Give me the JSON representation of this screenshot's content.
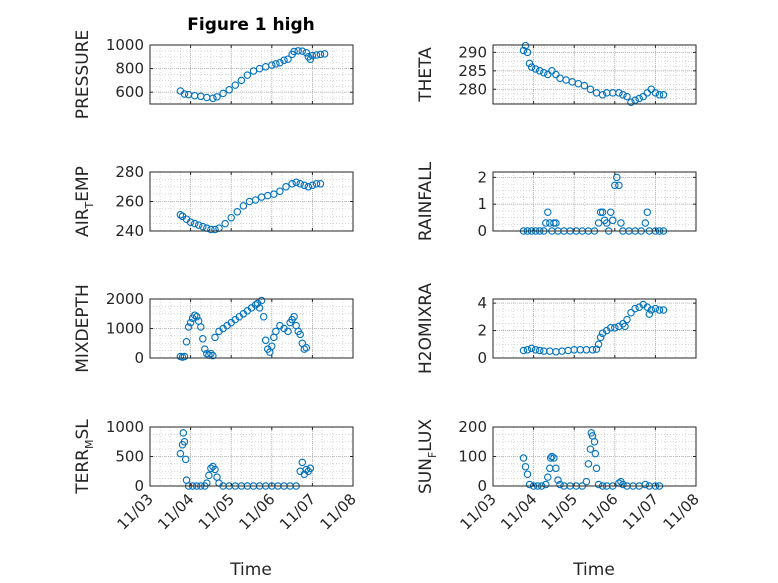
{
  "figure": {
    "title": "Figure 1 high",
    "marker_color": "#0072BD",
    "grid": "dotted minor + major",
    "x_ticks": [
      "11/03",
      "11/04",
      "11/05",
      "11/06",
      "11/07",
      "11/08"
    ],
    "xlabel": "Time"
  },
  "chart_data": [
    {
      "type": "scatter",
      "panel": "PRESSURE",
      "ylabel": "PRESSURE",
      "ylim": [
        500,
        1000
      ],
      "yticks": [
        600,
        800,
        1000
      ],
      "xlim_days": [
        3,
        8
      ],
      "points": [
        [
          3.75,
          610
        ],
        [
          3.85,
          585
        ],
        [
          3.95,
          580
        ],
        [
          4.1,
          570
        ],
        [
          4.25,
          565
        ],
        [
          4.4,
          555
        ],
        [
          4.55,
          548
        ],
        [
          4.65,
          560
        ],
        [
          4.8,
          590
        ],
        [
          4.95,
          620
        ],
        [
          5.1,
          660
        ],
        [
          5.25,
          700
        ],
        [
          5.4,
          745
        ],
        [
          5.55,
          780
        ],
        [
          5.7,
          800
        ],
        [
          5.85,
          815
        ],
        [
          6.0,
          830
        ],
        [
          6.1,
          840
        ],
        [
          6.2,
          850
        ],
        [
          6.3,
          870
        ],
        [
          6.4,
          880
        ],
        [
          6.5,
          920
        ],
        [
          6.55,
          945
        ],
        [
          6.65,
          950
        ],
        [
          6.75,
          948
        ],
        [
          6.85,
          935
        ],
        [
          6.9,
          900
        ],
        [
          6.95,
          880
        ],
        [
          7.0,
          910
        ],
        [
          7.1,
          915
        ],
        [
          7.2,
          920
        ],
        [
          7.3,
          925
        ]
      ]
    },
    {
      "type": "scatter",
      "panel": "THETA",
      "ylabel": "THETA",
      "ylim": [
        276,
        292
      ],
      "yticks": [
        280,
        285,
        290
      ],
      "xlim_days": [
        3,
        8
      ],
      "points": [
        [
          3.75,
          290.5
        ],
        [
          3.8,
          291.8
        ],
        [
          3.85,
          290
        ],
        [
          3.9,
          287
        ],
        [
          3.95,
          286
        ],
        [
          4.05,
          285.5
        ],
        [
          4.15,
          285
        ],
        [
          4.25,
          284.5
        ],
        [
          4.35,
          284
        ],
        [
          4.45,
          285
        ],
        [
          4.55,
          284
        ],
        [
          4.65,
          283
        ],
        [
          4.8,
          282.5
        ],
        [
          4.95,
          282
        ],
        [
          5.1,
          281.5
        ],
        [
          5.25,
          281
        ],
        [
          5.4,
          280
        ],
        [
          5.55,
          279
        ],
        [
          5.7,
          278.5
        ],
        [
          5.8,
          279
        ],
        [
          5.95,
          279
        ],
        [
          6.1,
          279
        ],
        [
          6.2,
          278.5
        ],
        [
          6.3,
          278
        ],
        [
          6.4,
          276.5
        ],
        [
          6.5,
          277
        ],
        [
          6.6,
          277.5
        ],
        [
          6.7,
          278
        ],
        [
          6.8,
          279
        ],
        [
          6.9,
          280
        ],
        [
          7.0,
          279
        ],
        [
          7.1,
          278.5
        ],
        [
          7.2,
          278.5
        ]
      ]
    },
    {
      "type": "scatter",
      "panel": "AIR_TEMP",
      "ylabel": "AIR",
      "ylabel_sub": "T",
      "ylabel_end": "EMP",
      "ylim": [
        240,
        280
      ],
      "yticks": [
        240,
        260,
        280
      ],
      "xlim_days": [
        3,
        8
      ],
      "points": [
        [
          3.75,
          251
        ],
        [
          3.8,
          250
        ],
        [
          3.9,
          248
        ],
        [
          4.0,
          246
        ],
        [
          4.1,
          245
        ],
        [
          4.2,
          244
        ],
        [
          4.3,
          243
        ],
        [
          4.4,
          242
        ],
        [
          4.5,
          241
        ],
        [
          4.6,
          241
        ],
        [
          4.7,
          242
        ],
        [
          4.85,
          245
        ],
        [
          5.0,
          249
        ],
        [
          5.15,
          253
        ],
        [
          5.3,
          257
        ],
        [
          5.45,
          260
        ],
        [
          5.6,
          261
        ],
        [
          5.75,
          263
        ],
        [
          5.9,
          264
        ],
        [
          6.05,
          265
        ],
        [
          6.2,
          267
        ],
        [
          6.35,
          270
        ],
        [
          6.5,
          272
        ],
        [
          6.6,
          273
        ],
        [
          6.7,
          272
        ],
        [
          6.8,
          271
        ],
        [
          6.9,
          270
        ],
        [
          7.0,
          271
        ],
        [
          7.1,
          272
        ],
        [
          7.2,
          272
        ]
      ]
    },
    {
      "type": "scatter",
      "panel": "RAINFALL",
      "ylabel": "RAINFALL",
      "ylim": [
        0,
        2.2
      ],
      "yticks": [
        0,
        1,
        2
      ],
      "xlim_days": [
        3,
        8
      ],
      "points": [
        [
          3.75,
          0
        ],
        [
          3.85,
          0
        ],
        [
          3.95,
          0
        ],
        [
          4.05,
          0
        ],
        [
          4.15,
          0
        ],
        [
          4.25,
          0
        ],
        [
          4.3,
          0.3
        ],
        [
          4.35,
          0.7
        ],
        [
          4.4,
          0.3
        ],
        [
          4.45,
          0
        ],
        [
          4.5,
          0.3
        ],
        [
          4.55,
          0.3
        ],
        [
          4.6,
          0
        ],
        [
          4.75,
          0
        ],
        [
          4.9,
          0
        ],
        [
          5.05,
          0
        ],
        [
          5.2,
          0
        ],
        [
          5.35,
          0
        ],
        [
          5.5,
          0
        ],
        [
          5.6,
          0.3
        ],
        [
          5.65,
          0.7
        ],
        [
          5.7,
          0.7
        ],
        [
          5.75,
          0.4
        ],
        [
          5.8,
          0.3
        ],
        [
          5.85,
          0
        ],
        [
          5.9,
          0.7
        ],
        [
          5.95,
          0.4
        ],
        [
          6.0,
          1.7
        ],
        [
          6.05,
          2.0
        ],
        [
          6.1,
          1.7
        ],
        [
          6.15,
          0.3
        ],
        [
          6.2,
          0
        ],
        [
          6.35,
          0
        ],
        [
          6.5,
          0
        ],
        [
          6.65,
          0
        ],
        [
          6.75,
          0.3
        ],
        [
          6.8,
          0.7
        ],
        [
          6.85,
          0
        ],
        [
          7.0,
          0
        ],
        [
          7.1,
          0
        ],
        [
          7.2,
          0
        ]
      ]
    },
    {
      "type": "scatter",
      "panel": "MIXDEPTH",
      "ylabel": "MIXDEPTH",
      "ylim": [
        0,
        2000
      ],
      "yticks": [
        0,
        1000,
        2000
      ],
      "xlim_days": [
        3,
        8
      ],
      "points": [
        [
          3.75,
          50
        ],
        [
          3.8,
          30
        ],
        [
          3.85,
          50
        ],
        [
          3.9,
          550
        ],
        [
          3.95,
          1050
        ],
        [
          4.0,
          1200
        ],
        [
          4.05,
          1350
        ],
        [
          4.1,
          1450
        ],
        [
          4.15,
          1400
        ],
        [
          4.2,
          1250
        ],
        [
          4.25,
          1050
        ],
        [
          4.3,
          650
        ],
        [
          4.35,
          300
        ],
        [
          4.4,
          150
        ],
        [
          4.45,
          100
        ],
        [
          4.5,
          150
        ],
        [
          4.55,
          80
        ],
        [
          4.6,
          700
        ],
        [
          4.7,
          900
        ],
        [
          4.8,
          1000
        ],
        [
          4.9,
          1100
        ],
        [
          5.0,
          1200
        ],
        [
          5.1,
          1300
        ],
        [
          5.2,
          1400
        ],
        [
          5.3,
          1500
        ],
        [
          5.4,
          1600
        ],
        [
          5.5,
          1700
        ],
        [
          5.6,
          1800
        ],
        [
          5.65,
          1850
        ],
        [
          5.7,
          1700
        ],
        [
          5.75,
          1950
        ],
        [
          5.8,
          1400
        ],
        [
          5.85,
          600
        ],
        [
          5.9,
          300
        ],
        [
          5.95,
          200
        ],
        [
          6.0,
          400
        ],
        [
          6.05,
          700
        ],
        [
          6.1,
          900
        ],
        [
          6.2,
          1100
        ],
        [
          6.3,
          1000
        ],
        [
          6.4,
          900
        ],
        [
          6.45,
          1200
        ],
        [
          6.5,
          1300
        ],
        [
          6.55,
          1400
        ],
        [
          6.6,
          1100
        ],
        [
          6.65,
          900
        ],
        [
          6.7,
          800
        ],
        [
          6.75,
          500
        ],
        [
          6.8,
          300
        ],
        [
          6.85,
          350
        ]
      ]
    },
    {
      "type": "scatter",
      "panel": "H2OMIXRA",
      "ylabel": "H2OMIXRA",
      "ylim": [
        0,
        4.3
      ],
      "yticks": [
        0,
        2,
        4
      ],
      "xlim_days": [
        3,
        8
      ],
      "points": [
        [
          3.75,
          0.55
        ],
        [
          3.85,
          0.6
        ],
        [
          3.95,
          0.7
        ],
        [
          4.05,
          0.6
        ],
        [
          4.15,
          0.55
        ],
        [
          4.25,
          0.5
        ],
        [
          4.4,
          0.5
        ],
        [
          4.55,
          0.45
        ],
        [
          4.7,
          0.5
        ],
        [
          4.85,
          0.55
        ],
        [
          5.0,
          0.6
        ],
        [
          5.15,
          0.6
        ],
        [
          5.3,
          0.6
        ],
        [
          5.45,
          0.6
        ],
        [
          5.55,
          0.65
        ],
        [
          5.6,
          1.0
        ],
        [
          5.65,
          1.5
        ],
        [
          5.7,
          1.8
        ],
        [
          5.8,
          2.0
        ],
        [
          5.9,
          2.2
        ],
        [
          6.0,
          2.2
        ],
        [
          6.1,
          2.3
        ],
        [
          6.2,
          2.5
        ],
        [
          6.25,
          2.3
        ],
        [
          6.3,
          2.8
        ],
        [
          6.4,
          3.3
        ],
        [
          6.5,
          3.6
        ],
        [
          6.6,
          3.7
        ],
        [
          6.7,
          3.9
        ],
        [
          6.8,
          3.7
        ],
        [
          6.85,
          3.2
        ],
        [
          6.9,
          3.5
        ],
        [
          7.0,
          3.6
        ],
        [
          7.1,
          3.5
        ],
        [
          7.2,
          3.5
        ]
      ]
    },
    {
      "type": "scatter",
      "panel": "TERR_MSL",
      "ylabel": "TERR",
      "ylabel_sub": "M",
      "ylabel_end": "SL",
      "ylim": [
        0,
        1000
      ],
      "yticks": [
        0,
        500,
        1000
      ],
      "xlim_days": [
        3,
        8
      ],
      "points": [
        [
          3.75,
          550
        ],
        [
          3.8,
          700
        ],
        [
          3.82,
          900
        ],
        [
          3.85,
          750
        ],
        [
          3.88,
          450
        ],
        [
          3.9,
          100
        ],
        [
          3.95,
          0
        ],
        [
          4.05,
          0
        ],
        [
          4.15,
          0
        ],
        [
          4.25,
          0
        ],
        [
          4.35,
          0
        ],
        [
          4.4,
          50
        ],
        [
          4.45,
          180
        ],
        [
          4.5,
          300
        ],
        [
          4.55,
          330
        ],
        [
          4.6,
          280
        ],
        [
          4.65,
          150
        ],
        [
          4.7,
          50
        ],
        [
          4.8,
          0
        ],
        [
          4.95,
          0
        ],
        [
          5.1,
          0
        ],
        [
          5.25,
          0
        ],
        [
          5.4,
          0
        ],
        [
          5.55,
          0
        ],
        [
          5.7,
          0
        ],
        [
          5.85,
          0
        ],
        [
          6.0,
          0
        ],
        [
          6.15,
          0
        ],
        [
          6.3,
          0
        ],
        [
          6.45,
          0
        ],
        [
          6.6,
          0
        ],
        [
          6.7,
          250
        ],
        [
          6.75,
          400
        ],
        [
          6.8,
          200
        ],
        [
          6.85,
          280
        ],
        [
          6.9,
          250
        ],
        [
          6.95,
          300
        ]
      ]
    },
    {
      "type": "scatter",
      "panel": "SUN_FLUX",
      "ylabel": "SUN",
      "ylabel_sub": "F",
      "ylabel_end": "LUX",
      "ylim": [
        0,
        200
      ],
      "yticks": [
        0,
        100,
        200
      ],
      "xlim_days": [
        3,
        8
      ],
      "points": [
        [
          3.75,
          95
        ],
        [
          3.8,
          65
        ],
        [
          3.85,
          40
        ],
        [
          3.9,
          5
        ],
        [
          4.0,
          0
        ],
        [
          4.1,
          0
        ],
        [
          4.2,
          0
        ],
        [
          4.3,
          5
        ],
        [
          4.35,
          30
        ],
        [
          4.4,
          60
        ],
        [
          4.42,
          95
        ],
        [
          4.45,
          100
        ],
        [
          4.5,
          95
        ],
        [
          4.55,
          60
        ],
        [
          4.6,
          20
        ],
        [
          4.65,
          5
        ],
        [
          4.75,
          0
        ],
        [
          4.9,
          0
        ],
        [
          5.05,
          0
        ],
        [
          5.2,
          0
        ],
        [
          5.3,
          15
        ],
        [
          5.35,
          75
        ],
        [
          5.4,
          125
        ],
        [
          5.42,
          180
        ],
        [
          5.45,
          170
        ],
        [
          5.5,
          150
        ],
        [
          5.52,
          110
        ],
        [
          5.55,
          60
        ],
        [
          5.6,
          5
        ],
        [
          5.7,
          0
        ],
        [
          5.8,
          0
        ],
        [
          5.95,
          0
        ],
        [
          6.1,
          10
        ],
        [
          6.15,
          15
        ],
        [
          6.2,
          5
        ],
        [
          6.3,
          0
        ],
        [
          6.45,
          0
        ],
        [
          6.6,
          0
        ],
        [
          6.75,
          5
        ],
        [
          6.85,
          0
        ],
        [
          7.0,
          0
        ],
        [
          7.1,
          0
        ]
      ]
    }
  ]
}
